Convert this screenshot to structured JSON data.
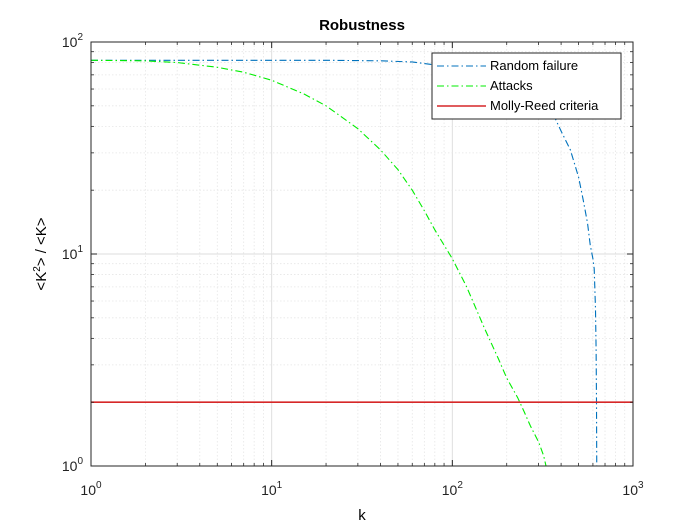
{
  "chart_data": {
    "type": "line",
    "title": "Robustness",
    "xlabel": "k",
    "ylabel": {
      "prefix": "<K",
      "superscript": "2",
      "suffix": "> / <K>"
    },
    "x_scale": "log",
    "y_scale": "log",
    "xlim": [
      1,
      1000
    ],
    "ylim": [
      1,
      100
    ],
    "x_ticks": [
      {
        "value": 1,
        "base": "10",
        "exp": "0"
      },
      {
        "value": 10,
        "base": "10",
        "exp": "1"
      },
      {
        "value": 100,
        "base": "10",
        "exp": "2"
      },
      {
        "value": 1000,
        "base": "10",
        "exp": "3"
      }
    ],
    "y_ticks": [
      {
        "value": 1,
        "base": "10",
        "exp": "0"
      },
      {
        "value": 10,
        "base": "10",
        "exp": "1"
      },
      {
        "value": 100,
        "base": "10",
        "exp": "2"
      }
    ],
    "grid": true,
    "minor_grid": true,
    "legend_position": "top-right",
    "series": [
      {
        "name": "Random failure",
        "color": "#0072BD",
        "style": "dash-dot",
        "x": [
          1,
          2,
          5,
          10,
          20,
          40,
          60,
          80,
          100,
          150,
          200,
          250,
          300,
          330,
          360,
          400,
          450,
          500,
          530,
          560,
          580,
          600,
          610,
          620,
          625,
          628,
          630
        ],
        "y": [
          82,
          82,
          82,
          82,
          82,
          81.5,
          80.5,
          78,
          76,
          73,
          69,
          64,
          57,
          52,
          46,
          38,
          31,
          23,
          18,
          14,
          11,
          9.5,
          8.5,
          5.5,
          3.5,
          2,
          1
        ]
      },
      {
        "name": "Attacks",
        "color": "#00EE00",
        "style": "dash-dot",
        "x": [
          1,
          2,
          3,
          5,
          7,
          10,
          15,
          20,
          30,
          40,
          50,
          60,
          70,
          80,
          100,
          120,
          150,
          180,
          200,
          230,
          250,
          270,
          300,
          320,
          330
        ],
        "y": [
          82,
          81.5,
          80,
          76,
          72,
          66,
          57,
          50,
          39,
          31,
          25,
          20,
          16,
          13,
          9.5,
          7,
          4.5,
          3.2,
          2.6,
          2.1,
          1.8,
          1.55,
          1.3,
          1.12,
          1
        ]
      },
      {
        "name": "Molly-Reed criteria",
        "color": "#D62728",
        "style": "solid",
        "x": [
          1,
          1000
        ],
        "y": [
          2,
          2
        ]
      }
    ]
  }
}
